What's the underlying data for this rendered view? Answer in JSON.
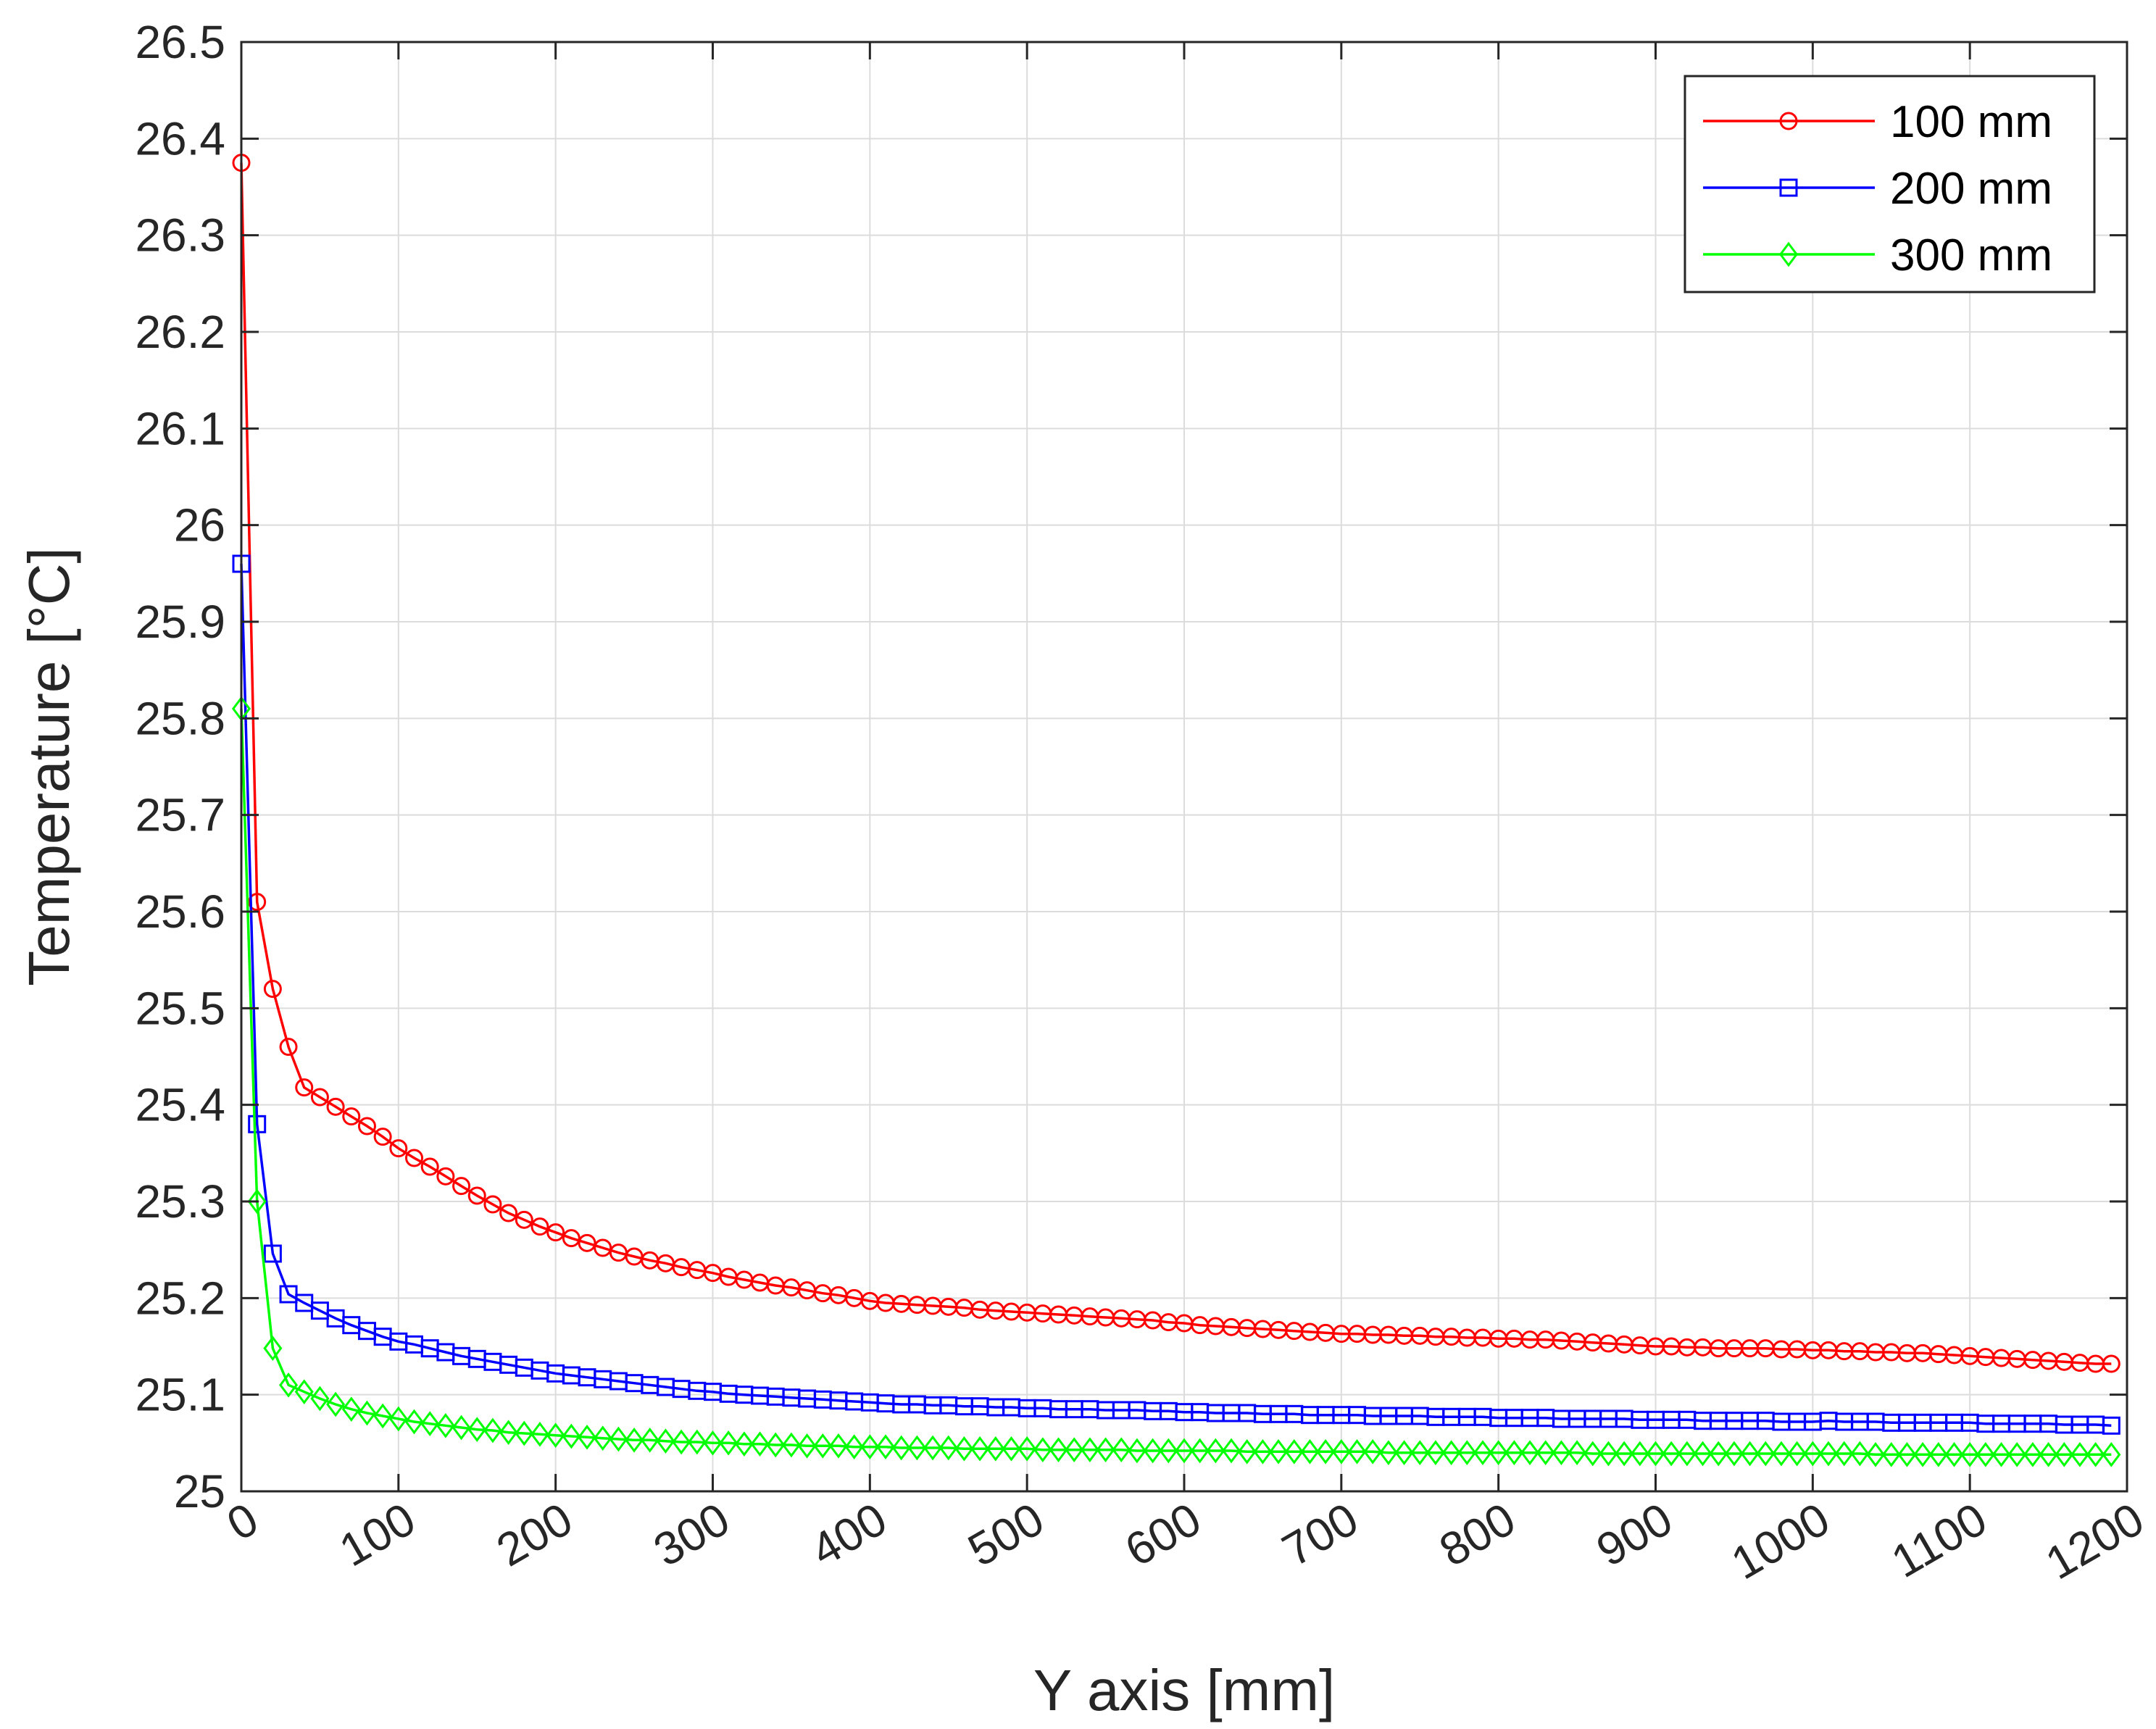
{
  "chart_data": {
    "type": "line",
    "title": "",
    "xlabel": "Y axis [mm]",
    "ylabel": "Temperature [°C]",
    "xlim": [
      0,
      1200
    ],
    "ylim": [
      25,
      26.5
    ],
    "xticks": [
      0,
      100,
      200,
      300,
      400,
      500,
      600,
      700,
      800,
      900,
      1000,
      1100,
      1200
    ],
    "yticks": [
      25,
      25.1,
      25.2,
      25.3,
      25.4,
      25.5,
      25.6,
      25.7,
      25.8,
      25.9,
      26,
      26.1,
      26.2,
      26.3,
      26.4,
      26.5
    ],
    "xtick_labels": [
      "0",
      "100",
      "200",
      "300",
      "400",
      "500",
      "600",
      "700",
      "800",
      "900",
      "1000",
      "1100",
      "1200"
    ],
    "ytick_labels": [
      "25",
      "25.1",
      "25.2",
      "25.3",
      "25.4",
      "25.5",
      "25.6",
      "25.7",
      "25.8",
      "25.9",
      "26",
      "26.1",
      "26.2",
      "26.3",
      "26.4",
      "26.5"
    ],
    "grid": true,
    "legend_position": "top-right",
    "series": [
      {
        "name": "100 mm",
        "color": "#ff0000",
        "marker": "circle",
        "x": [
          0,
          10,
          20,
          30,
          40,
          50,
          60,
          70,
          80,
          90,
          100,
          110,
          120,
          130,
          140,
          150,
          160,
          170,
          180,
          190,
          200,
          210,
          220,
          230,
          240,
          250,
          260,
          270,
          280,
          290,
          300,
          310,
          320,
          330,
          340,
          350,
          360,
          370,
          380,
          390,
          400,
          410,
          420,
          430,
          440,
          450,
          460,
          470,
          480,
          490,
          500,
          510,
          520,
          530,
          540,
          550,
          560,
          570,
          580,
          590,
          600,
          610,
          620,
          630,
          640,
          650,
          660,
          670,
          680,
          690,
          700,
          710,
          720,
          730,
          740,
          750,
          760,
          770,
          780,
          790,
          800,
          810,
          820,
          830,
          840,
          850,
          860,
          870,
          880,
          890,
          900,
          910,
          920,
          930,
          940,
          950,
          960,
          970,
          980,
          990,
          1000,
          1010,
          1020,
          1030,
          1040,
          1050,
          1060,
          1070,
          1080,
          1090,
          1100,
          1110,
          1120,
          1130,
          1140,
          1150,
          1160,
          1170,
          1180,
          1190
        ],
        "y": [
          26.375,
          25.61,
          25.52,
          25.46,
          25.418,
          25.408,
          25.398,
          25.388,
          25.378,
          25.367,
          25.355,
          25.345,
          25.336,
          25.326,
          25.316,
          25.306,
          25.297,
          25.288,
          25.281,
          25.274,
          25.268,
          25.262,
          25.257,
          25.252,
          25.247,
          25.243,
          25.239,
          25.236,
          25.232,
          25.229,
          25.226,
          25.222,
          25.219,
          25.216,
          25.213,
          25.211,
          25.208,
          25.205,
          25.203,
          25.2,
          25.197,
          25.195,
          25.194,
          25.193,
          25.192,
          25.191,
          25.19,
          25.188,
          25.187,
          25.186,
          25.185,
          25.184,
          25.183,
          25.182,
          25.181,
          25.18,
          25.179,
          25.178,
          25.177,
          25.175,
          25.174,
          25.172,
          25.171,
          25.17,
          25.169,
          25.168,
          25.167,
          25.166,
          25.165,
          25.164,
          25.163,
          25.163,
          25.162,
          25.162,
          25.161,
          25.161,
          25.16,
          25.16,
          25.159,
          25.159,
          25.158,
          25.158,
          25.157,
          25.157,
          25.156,
          25.155,
          25.154,
          25.153,
          25.152,
          25.151,
          25.15,
          25.15,
          25.149,
          25.149,
          25.148,
          25.148,
          25.148,
          25.148,
          25.147,
          25.147,
          25.146,
          25.146,
          25.145,
          25.145,
          25.144,
          25.144,
          25.143,
          25.143,
          25.142,
          25.141,
          25.14,
          25.139,
          25.138,
          25.137,
          25.136,
          25.135,
          25.134,
          25.133,
          25.132,
          25.132
        ]
      },
      {
        "name": "200 mm",
        "color": "#0000ff",
        "marker": "square",
        "x": [
          0,
          10,
          20,
          30,
          40,
          50,
          60,
          70,
          80,
          90,
          100,
          110,
          120,
          130,
          140,
          150,
          160,
          170,
          180,
          190,
          200,
          210,
          220,
          230,
          240,
          250,
          260,
          270,
          280,
          290,
          300,
          310,
          320,
          330,
          340,
          350,
          360,
          370,
          380,
          390,
          400,
          410,
          420,
          430,
          440,
          450,
          460,
          470,
          480,
          490,
          500,
          510,
          520,
          530,
          540,
          550,
          560,
          570,
          580,
          590,
          600,
          610,
          620,
          630,
          640,
          650,
          660,
          670,
          680,
          690,
          700,
          710,
          720,
          730,
          740,
          750,
          760,
          770,
          780,
          790,
          800,
          810,
          820,
          830,
          840,
          850,
          860,
          870,
          880,
          890,
          900,
          910,
          920,
          930,
          940,
          950,
          960,
          970,
          980,
          990,
          1000,
          1010,
          1020,
          1030,
          1040,
          1050,
          1060,
          1070,
          1080,
          1090,
          1100,
          1110,
          1120,
          1130,
          1140,
          1150,
          1160,
          1170,
          1180,
          1190
        ],
        "y": [
          25.96,
          25.38,
          25.246,
          25.204,
          25.195,
          25.187,
          25.179,
          25.172,
          25.166,
          25.16,
          25.155,
          25.152,
          25.148,
          25.144,
          25.14,
          25.137,
          25.134,
          25.131,
          25.128,
          25.125,
          25.122,
          25.12,
          25.118,
          25.116,
          25.114,
          25.112,
          25.11,
          25.108,
          25.106,
          25.104,
          25.103,
          25.101,
          25.1,
          25.099,
          25.098,
          25.097,
          25.096,
          25.095,
          25.094,
          25.093,
          25.092,
          25.091,
          25.09,
          25.09,
          25.089,
          25.089,
          25.088,
          25.088,
          25.087,
          25.087,
          25.086,
          25.086,
          25.085,
          25.085,
          25.085,
          25.084,
          25.084,
          25.084,
          25.083,
          25.083,
          25.082,
          25.082,
          25.081,
          25.081,
          25.081,
          25.08,
          25.08,
          25.08,
          25.079,
          25.079,
          25.079,
          25.079,
          25.078,
          25.078,
          25.078,
          25.078,
          25.077,
          25.077,
          25.077,
          25.077,
          25.076,
          25.076,
          25.076,
          25.076,
          25.075,
          25.075,
          25.075,
          25.075,
          25.075,
          25.074,
          25.074,
          25.074,
          25.074,
          25.073,
          25.073,
          25.073,
          25.073,
          25.073,
          25.072,
          25.072,
          25.072,
          25.073,
          25.072,
          25.072,
          25.072,
          25.071,
          25.071,
          25.071,
          25.071,
          25.071,
          25.071,
          25.07,
          25.07,
          25.07,
          25.07,
          25.07,
          25.069,
          25.069,
          25.069,
          25.068
        ]
      },
      {
        "name": "300 mm",
        "color": "#00ff00",
        "marker": "diamond",
        "x": [
          0,
          10,
          20,
          30,
          40,
          50,
          60,
          70,
          80,
          90,
          100,
          110,
          120,
          130,
          140,
          150,
          160,
          170,
          180,
          190,
          200,
          210,
          220,
          230,
          240,
          250,
          260,
          270,
          280,
          290,
          300,
          310,
          320,
          330,
          340,
          350,
          360,
          370,
          380,
          390,
          400,
          410,
          420,
          430,
          440,
          450,
          460,
          470,
          480,
          490,
          500,
          510,
          520,
          530,
          540,
          550,
          560,
          570,
          580,
          590,
          600,
          610,
          620,
          630,
          640,
          650,
          660,
          670,
          680,
          690,
          700,
          710,
          720,
          730,
          740,
          750,
          760,
          770,
          780,
          790,
          800,
          810,
          820,
          830,
          840,
          850,
          860,
          870,
          880,
          890,
          900,
          910,
          920,
          930,
          940,
          950,
          960,
          970,
          980,
          990,
          1000,
          1010,
          1020,
          1030,
          1040,
          1050,
          1060,
          1070,
          1080,
          1090,
          1100,
          1110,
          1120,
          1130,
          1140,
          1150,
          1160,
          1170,
          1180,
          1190
        ],
        "y": [
          25.81,
          25.3,
          25.148,
          25.11,
          25.103,
          25.096,
          25.09,
          25.085,
          25.081,
          25.078,
          25.075,
          25.072,
          25.07,
          25.068,
          25.066,
          25.064,
          25.063,
          25.061,
          25.06,
          25.059,
          25.058,
          25.057,
          25.056,
          25.055,
          25.054,
          25.053,
          25.053,
          25.052,
          25.051,
          25.051,
          25.05,
          25.05,
          25.049,
          25.049,
          25.048,
          25.048,
          25.047,
          25.047,
          25.047,
          25.046,
          25.046,
          25.046,
          25.045,
          25.045,
          25.045,
          25.045,
          25.044,
          25.044,
          25.044,
          25.044,
          25.044,
          25.043,
          25.043,
          25.043,
          25.043,
          25.043,
          25.043,
          25.042,
          25.042,
          25.042,
          25.042,
          25.042,
          25.042,
          25.042,
          25.041,
          25.041,
          25.041,
          25.041,
          25.041,
          25.041,
          25.041,
          25.041,
          25.041,
          25.04,
          25.04,
          25.04,
          25.04,
          25.04,
          25.04,
          25.04,
          25.04,
          25.04,
          25.04,
          25.04,
          25.04,
          25.04,
          25.039,
          25.039,
          25.039,
          25.039,
          25.039,
          25.039,
          25.039,
          25.039,
          25.039,
          25.039,
          25.039,
          25.039,
          25.039,
          25.039,
          25.039,
          25.039,
          25.039,
          25.039,
          25.038,
          25.038,
          25.038,
          25.038,
          25.038,
          25.038,
          25.038,
          25.038,
          25.038,
          25.038,
          25.038,
          25.038,
          25.038,
          25.038,
          25.038,
          25.038
        ]
      }
    ]
  }
}
